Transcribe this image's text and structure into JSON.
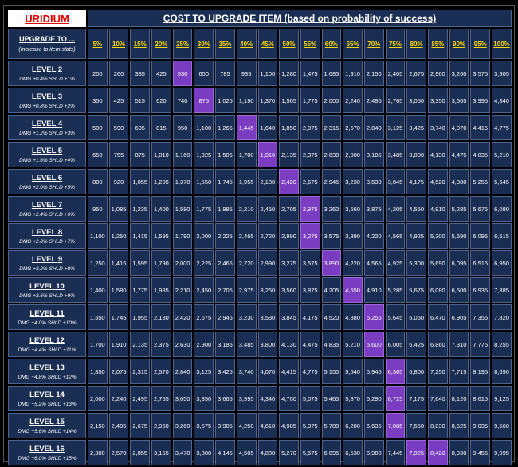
{
  "header": {
    "brand": "URIDIUM",
    "title": "COST TO UPGRADE ITEM (based on probability of success)"
  },
  "table": {
    "corner": {
      "title": "UPGRADE TO ...",
      "note": "(Increase to item stats)"
    },
    "columns": [
      "5%",
      "10%",
      "15%",
      "20%",
      "25%",
      "30%",
      "35%",
      "40%",
      "45%",
      "50%",
      "55%",
      "60%",
      "65%",
      "70%",
      "75%",
      "80%",
      "85%",
      "90%",
      "95%",
      "100%"
    ],
    "rows": [
      {
        "level": "LEVEL 2",
        "stats": "DMG +0.4%  SHLD +1%",
        "highlight": [
          4
        ],
        "values": [
          "200",
          "260",
          "335",
          "425",
          "530",
          "650",
          "785",
          "935",
          "1,100",
          "1,280",
          "1,475",
          "1,685",
          "1,910",
          "2,150",
          "2,405",
          "2,675",
          "2,960",
          "3,260",
          "3,575",
          "3,905"
        ]
      },
      {
        "level": "LEVEL 3",
        "stats": "DMG +0.8%  SHLD +2%",
        "highlight": [
          5
        ],
        "values": [
          "350",
          "425",
          "515",
          "620",
          "740",
          "875",
          "1,025",
          "1,190",
          "1,370",
          "1,565",
          "1,775",
          "2,000",
          "2,240",
          "2,495",
          "2,765",
          "3,050",
          "3,350",
          "3,665",
          "3,995",
          "4,340"
        ]
      },
      {
        "level": "LEVEL 4",
        "stats": "DMG +1.2%  SHLD +3%",
        "highlight": [
          7
        ],
        "values": [
          "500",
          "590",
          "695",
          "815",
          "950",
          "1,100",
          "1,265",
          "1,445",
          "1,640",
          "1,850",
          "2,075",
          "2,315",
          "2,570",
          "2,840",
          "3,125",
          "3,425",
          "3,740",
          "4,070",
          "4,415",
          "4,775"
        ]
      },
      {
        "level": "LEVEL 5",
        "stats": "DMG +1.6%  SHLD +4%",
        "highlight": [
          8
        ],
        "values": [
          "650",
          "755",
          "875",
          "1,010",
          "1,160",
          "1,325",
          "1,505",
          "1,700",
          "1,910",
          "2,135",
          "2,375",
          "2,630",
          "2,900",
          "3,185",
          "3,485",
          "3,800",
          "4,130",
          "4,475",
          "4,835",
          "5,210"
        ]
      },
      {
        "level": "LEVEL 6",
        "stats": "DMG +2.0%  SHLD +5%",
        "highlight": [
          9
        ],
        "values": [
          "800",
          "920",
          "1,055",
          "1,205",
          "1,370",
          "1,550",
          "1,745",
          "1,955",
          "2,180",
          "2,420",
          "2,675",
          "2,945",
          "3,230",
          "3,530",
          "3,845",
          "4,175",
          "4,520",
          "4,880",
          "5,255",
          "5,645"
        ]
      },
      {
        "level": "LEVEL 7",
        "stats": "DMG +2.4%  SHLD +6%",
        "highlight": [
          10
        ],
        "values": [
          "950",
          "1,085",
          "1,235",
          "1,400",
          "1,580",
          "1,775",
          "1,985",
          "2,210",
          "2,450",
          "2,705",
          "2,975",
          "3,260",
          "3,560",
          "3,875",
          "4,205",
          "4,550",
          "4,910",
          "5,285",
          "5,675",
          "6,080"
        ]
      },
      {
        "level": "LEVEL 8",
        "stats": "DMG +2.8%  SHLD +7%",
        "highlight": [
          10
        ],
        "values": [
          "1,100",
          "1,250",
          "1,415",
          "1,595",
          "1,790",
          "2,000",
          "2,225",
          "2,465",
          "2,720",
          "2,990",
          "3,275",
          "3,575",
          "3,890",
          "4,220",
          "4,565",
          "4,925",
          "5,300",
          "5,690",
          "6,095",
          "6,515"
        ]
      },
      {
        "level": "LEVEL 9",
        "stats": "DMG +3.2%  SHLD +8%",
        "highlight": [
          11
        ],
        "values": [
          "1,250",
          "1,415",
          "1,595",
          "1,790",
          "2,000",
          "2,225",
          "2,465",
          "2,720",
          "2,990",
          "3,275",
          "3,575",
          "3,890",
          "4,220",
          "4,565",
          "4,925",
          "5,300",
          "5,690",
          "6,095",
          "6,515",
          "6,950"
        ]
      },
      {
        "level": "LEVEL 10",
        "stats": "DMG +3.6%  SHLD +9%",
        "highlight": [
          12
        ],
        "values": [
          "1,400",
          "1,580",
          "1,775",
          "1,985",
          "2,210",
          "2,450",
          "2,705",
          "2,975",
          "3,260",
          "3,560",
          "3,875",
          "4,205",
          "4,550",
          "4,910",
          "5,285",
          "5,675",
          "6,080",
          "6,500",
          "6,935",
          "7,385"
        ]
      },
      {
        "level": "LEVEL 11",
        "stats": "DMG +4.0%  SHLD +10%",
        "highlight": [
          13
        ],
        "values": [
          "1,550",
          "1,745",
          "1,955",
          "2,180",
          "2,420",
          "2,675",
          "2,945",
          "3,230",
          "3,530",
          "3,845",
          "4,175",
          "4,520",
          "4,880",
          "5,255",
          "5,645",
          "6,050",
          "6,470",
          "6,905",
          "7,355",
          "7,820"
        ]
      },
      {
        "level": "LEVEL 12",
        "stats": "DMG +4.4%  SHLD +11%",
        "highlight": [
          13
        ],
        "values": [
          "1,700",
          "1,910",
          "2,135",
          "2,375",
          "2,630",
          "2,900",
          "3,185",
          "3,485",
          "3,800",
          "4,130",
          "4,475",
          "4,835",
          "5,210",
          "5,600",
          "6,005",
          "6,425",
          "6,860",
          "7,310",
          "7,775",
          "8,255"
        ]
      },
      {
        "level": "LEVEL 13",
        "stats": "DMG +4.8%  SHLD +12%",
        "highlight": [
          14
        ],
        "values": [
          "1,850",
          "2,075",
          "2,315",
          "2,570",
          "2,840",
          "3,125",
          "3,425",
          "3,740",
          "4,070",
          "4,415",
          "4,775",
          "5,150",
          "5,540",
          "5,945",
          "6,365",
          "6,800",
          "7,250",
          "7,715",
          "8,195",
          "8,690"
        ]
      },
      {
        "level": "LEVEL 14",
        "stats": "DMG +5.2%  SHLD +13%",
        "highlight": [
          14
        ],
        "values": [
          "2,000",
          "2,240",
          "2,495",
          "2,765",
          "3,050",
          "3,350",
          "3,665",
          "3,995",
          "4,340",
          "4,700",
          "5,075",
          "5,465",
          "5,870",
          "6,290",
          "6,725",
          "7,175",
          "7,640",
          "8,120",
          "8,615",
          "9,125"
        ]
      },
      {
        "level": "LEVEL 15",
        "stats": "DMG +5.6%  SHLD +14%",
        "highlight": [
          14
        ],
        "values": [
          "2,150",
          "2,405",
          "2,675",
          "2,960",
          "3,260",
          "3,575",
          "3,905",
          "4,250",
          "4,610",
          "4,985",
          "5,375",
          "5,780",
          "6,200",
          "6,635",
          "7,085",
          "7,550",
          "8,030",
          "8,525",
          "9,035",
          "9,560"
        ]
      },
      {
        "level": "LEVEL 16",
        "stats": "DMG +6.0%  SHLD +15%",
        "highlight": [
          15,
          16
        ],
        "values": [
          "2,300",
          "2,570",
          "2,855",
          "3,155",
          "3,470",
          "3,800",
          "4,145",
          "4,505",
          "4,880",
          "5,270",
          "5,675",
          "6,095",
          "6,530",
          "6,980",
          "7,445",
          "7,925",
          "8,420",
          "8,930",
          "9,455",
          "9,995"
        ]
      }
    ]
  }
}
